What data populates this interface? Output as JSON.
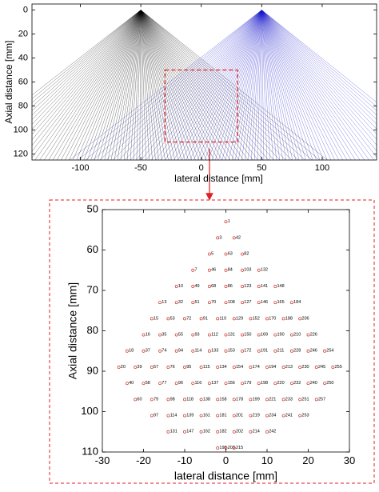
{
  "chart_data": [
    {
      "type": "fan",
      "ylabel": "Axial distance [mm]",
      "xlabel": "lateral distance [mm]",
      "xlim": [
        -140,
        145
      ],
      "ylim": [
        -5,
        125
      ],
      "y_reversed": true,
      "xticks": [
        -100,
        -50,
        0,
        50,
        100
      ],
      "yticks": [
        0,
        20,
        40,
        60,
        80,
        100,
        120
      ],
      "fans": [
        {
          "apex": -50,
          "color": "#000000"
        },
        {
          "apex": 50,
          "color": "#1a1acc"
        }
      ],
      "highlight_box": {
        "xlim": [
          -30,
          30
        ],
        "ylim": [
          50,
          110
        ],
        "color": "#e02020"
      }
    },
    {
      "type": "scatter",
      "ylabel": "Axial distance [mm]",
      "xlabel": "lateral distance [mm]",
      "xlim": [
        -30,
        30
      ],
      "ylim": [
        50,
        110
      ],
      "y_reversed": true,
      "xticks": [
        -30,
        -20,
        -10,
        0,
        10,
        20,
        30
      ],
      "yticks": [
        50,
        60,
        70,
        80,
        90,
        100,
        110
      ],
      "color": "#d03030",
      "x": [
        0,
        -2,
        2,
        -4,
        0,
        4,
        -8,
        -4,
        0,
        4,
        8,
        -12,
        -8,
        -4,
        0,
        4,
        8,
        12,
        -16,
        -12,
        -8,
        -4,
        0,
        4,
        8,
        12,
        16,
        -18,
        -14,
        -10,
        -6,
        -2,
        2,
        6,
        10,
        14,
        18,
        -20,
        -16,
        -12,
        -8,
        -4,
        0,
        4,
        8,
        12,
        16,
        20,
        -24,
        -20,
        -16,
        -12,
        -8,
        -4,
        0,
        4,
        8,
        12,
        16,
        20,
        24,
        -26,
        -22,
        -18,
        -14,
        -10,
        -6,
        -2,
        2,
        6,
        10,
        14,
        18,
        22,
        26,
        -24,
        -20,
        -16,
        -12,
        -8,
        -4,
        0,
        4,
        8,
        12,
        16,
        20,
        24,
        -22,
        -18,
        -14,
        -10,
        -6,
        -2,
        2,
        6,
        10,
        14,
        18,
        22,
        -18,
        -14,
        -10,
        -6,
        -2,
        2,
        6,
        10,
        14,
        18,
        -14,
        -10,
        -6,
        -2,
        2,
        6,
        10,
        -2,
        0,
        2
      ],
      "y": [
        53,
        57,
        57,
        61,
        61,
        61,
        65,
        65,
        65,
        65,
        65,
        69,
        69,
        69,
        69,
        69,
        69,
        69,
        73,
        73,
        73,
        73,
        73,
        73,
        73,
        73,
        73,
        77,
        77,
        77,
        77,
        77,
        77,
        77,
        77,
        77,
        77,
        81,
        81,
        81,
        81,
        81,
        81,
        81,
        81,
        81,
        81,
        81,
        85,
        85,
        85,
        85,
        85,
        85,
        85,
        85,
        85,
        85,
        85,
        85,
        85,
        89,
        89,
        89,
        89,
        89,
        89,
        89,
        89,
        89,
        89,
        89,
        89,
        89,
        89,
        93,
        93,
        93,
        93,
        93,
        93,
        93,
        93,
        93,
        93,
        93,
        93,
        93,
        97,
        97,
        97,
        97,
        97,
        97,
        97,
        97,
        97,
        97,
        97,
        97,
        101,
        101,
        101,
        101,
        101,
        101,
        101,
        101,
        101,
        101,
        105,
        105,
        105,
        105,
        105,
        105,
        105,
        109,
        109,
        109
      ],
      "labels": [
        1,
        3,
        42,
        5,
        63,
        82,
        7,
        46,
        84,
        103,
        132,
        10,
        49,
        68,
        86,
        123,
        141,
        148,
        13,
        32,
        51,
        70,
        108,
        127,
        146,
        165,
        184,
        15,
        53,
        72,
        91,
        110,
        129,
        152,
        170,
        188,
        206,
        16,
        35,
        55,
        93,
        112,
        131,
        150,
        169,
        190,
        210,
        226,
        18,
        37,
        74,
        94,
        114,
        133,
        153,
        172,
        191,
        211,
        228,
        246,
        254,
        20,
        39,
        57,
        76,
        95,
        115,
        134,
        154,
        174,
        194,
        213,
        230,
        245,
        255,
        40,
        58,
        77,
        96,
        116,
        137,
        156,
        179,
        198,
        220,
        232,
        240,
        250,
        60,
        79,
        98,
        118,
        138,
        158,
        178,
        199,
        221,
        233,
        251,
        257,
        97,
        114,
        139,
        161,
        181,
        201,
        219,
        234,
        241,
        253,
        131,
        147,
        162,
        182,
        202,
        214,
        242,
        190,
        203,
        215
      ]
    }
  ]
}
